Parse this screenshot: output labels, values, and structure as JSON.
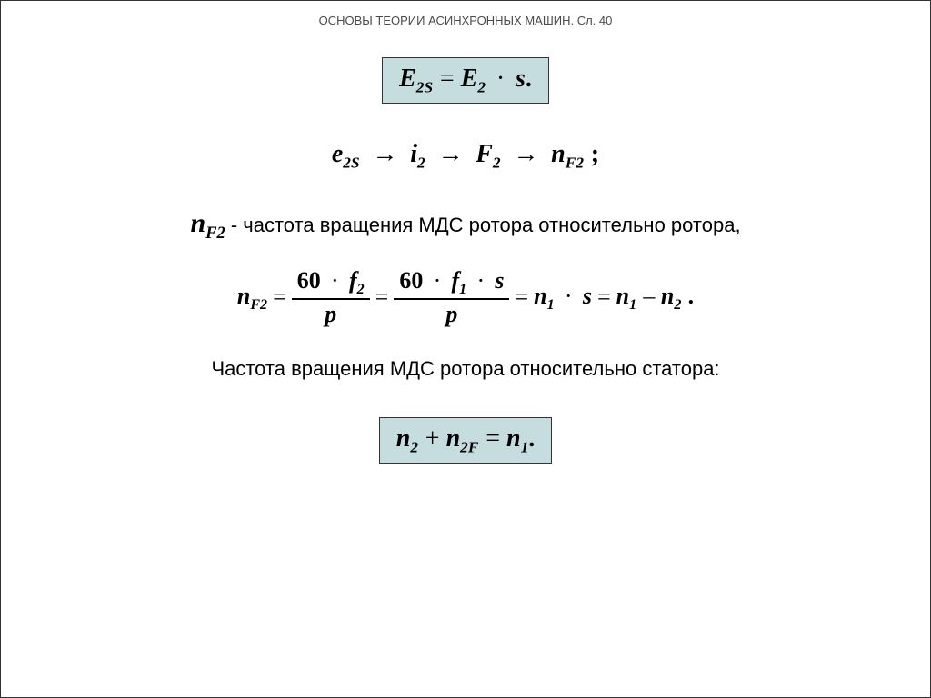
{
  "header": "ОСНОВЫ ТЕОРИИ АСИНХРОННЫХ МАШИН. Сл. 40",
  "colors": {
    "box_bg": "#c6dde0",
    "box_border": "#333333",
    "text": "#000000",
    "header_text": "#4a4a4a",
    "page_bg": "#ffffff"
  },
  "eq1": {
    "lhs_base": "E",
    "lhs_sub": "2S",
    "rhs_base": "E",
    "rhs_sub": "2",
    "factor": "s",
    "terminator": "."
  },
  "eq2": {
    "t1_base": "e",
    "t1_sub": "2S",
    "t2_base": "i",
    "t2_sub": "2",
    "t3_base": "F",
    "t3_sub": "2",
    "t4_base": "n",
    "t4_sub": "F2",
    "terminator": ";"
  },
  "line1": {
    "lead_base": "n",
    "lead_sub": "F2",
    "text": "- частота вращения МДС ротора  относительно ротора,"
  },
  "eq3": {
    "lhs_base": "n",
    "lhs_sub": "F2",
    "frac1_num_a": "60",
    "frac1_num_b_base": "f",
    "frac1_num_b_sub": "2",
    "frac1_den": "p",
    "frac2_num_a": "60",
    "frac2_num_b_base": "f",
    "frac2_num_b_sub": "1",
    "frac2_num_c": "s",
    "frac2_den": "p",
    "rhs1_base": "n",
    "rhs1_sub": "1",
    "rhs1_factor": "s",
    "rhs2a_base": "n",
    "rhs2a_sub": "1",
    "rhs2b_base": "n",
    "rhs2b_sub": "2",
    "terminator": "."
  },
  "line2": {
    "text": "Частота вращения МДС ротора  относительно статора:"
  },
  "eq4": {
    "a_base": "n",
    "a_sub": "2",
    "b_base": "n",
    "b_sub": "2F",
    "c_base": "n",
    "c_sub": "1",
    "terminator": "."
  }
}
